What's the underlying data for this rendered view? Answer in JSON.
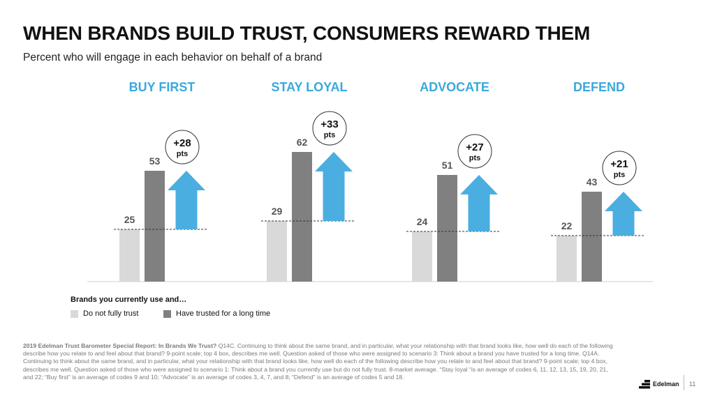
{
  "header": {
    "title": "WHEN BRANDS BUILD TRUST, CONSUMERS REWARD THEM",
    "subtitle": "Percent who will engage in each behavior on behalf of a brand"
  },
  "chart_data": {
    "type": "bar",
    "categories": [
      "BUY FIRST",
      "STAY LOYAL",
      "ADVOCATE",
      "DEFEND"
    ],
    "series": [
      {
        "name": "Do not fully trust",
        "values": [
          25,
          29,
          24,
          22
        ],
        "color": "#d9d9d9"
      },
      {
        "name": "Have trusted for a long time",
        "values": [
          53,
          62,
          51,
          43
        ],
        "color": "#808080"
      }
    ],
    "differences": [
      {
        "value": "+28",
        "unit": "pts"
      },
      {
        "value": "+33",
        "unit": "pts"
      },
      {
        "value": "+27",
        "unit": "pts"
      },
      {
        "value": "+21",
        "unit": "pts"
      }
    ],
    "ylim": [
      0,
      70
    ],
    "category_color": "#3aa8de",
    "arrow_color": "#4aaee0",
    "grid": false
  },
  "legend": {
    "title": "Brands you currently use and…",
    "items": [
      "Do not fully trust",
      "Have trusted for a long time"
    ]
  },
  "footnote": {
    "source": "2019 Edelman Trust Barometer Special Report: In Brands We Trust?",
    "text": " Q14C. Continuing to think about the same brand, and in particular, what your relationship with that brand looks like, how well do each of the following describe how you relate to and feel about that brand? 9-point scale; top 4 box, describes me well. Question asked of those who were assigned to scenario 3: Think about a brand you have trusted for a long time. Q14A. Continuing to think about the same brand, and in particular, what your relationship with that brand looks like, how well do each of the following describe how you relate to and feel about that brand? 9-point scale; top 4 box, describes me well. Question asked of those who were assigned to scenario 1: Think about a brand you currently use but do not fully trust. 8-market average. “Stay loyal “is an average of codes 6, 11, 12, 13, 15, 19, 20, 21, and 22; “Buy first” is an average of codes 9 and 10; “Advocate” is an average of codes 3, 4, 7, and 8; “Defend” is an average of codes 5 and 18."
  },
  "brand": {
    "name": "Edelman"
  },
  "page": {
    "number": "11"
  }
}
